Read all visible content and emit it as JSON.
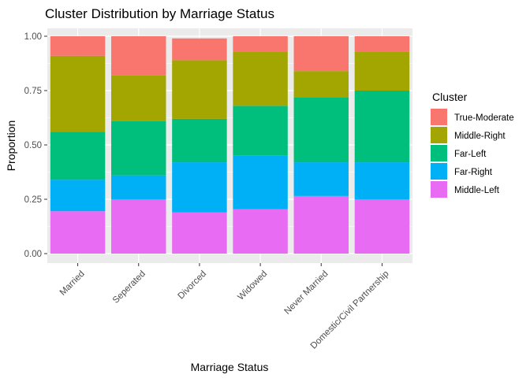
{
  "chart_data": {
    "type": "bar",
    "stacked": true,
    "title": "Cluster Distribution by Marriage Status",
    "xlabel": "Marriage Status",
    "ylabel": "Proportion",
    "ylim": [
      0,
      1
    ],
    "yticks": [
      "0.00",
      "0.25",
      "0.50",
      "0.75",
      "1.00"
    ],
    "grid": true,
    "legend": {
      "title": "Cluster",
      "placement": "right"
    },
    "categories": [
      "Married",
      "Seperated",
      "Divorced",
      "Widowed",
      "Never Married",
      "Domestic/Civil Partnership"
    ],
    "series": [
      {
        "name": "True-Moderate",
        "color": "#F8766D",
        "values": [
          0.09,
          0.18,
          0.1,
          0.07,
          0.16,
          0.07
        ]
      },
      {
        "name": "Middle-Right",
        "color": "#A3A500",
        "values": [
          0.35,
          0.21,
          0.27,
          0.25,
          0.12,
          0.18
        ]
      },
      {
        "name": "Far-Left",
        "color": "#00BF7D",
        "values": [
          0.22,
          0.25,
          0.2,
          0.23,
          0.3,
          0.33
        ]
      },
      {
        "name": "Far-Right",
        "color": "#00B0F6",
        "values": [
          0.145,
          0.11,
          0.23,
          0.245,
          0.155,
          0.17
        ]
      },
      {
        "name": "Middle-Left",
        "color": "#E76BF3",
        "values": [
          0.195,
          0.25,
          0.19,
          0.205,
          0.265,
          0.25
        ]
      }
    ]
  }
}
